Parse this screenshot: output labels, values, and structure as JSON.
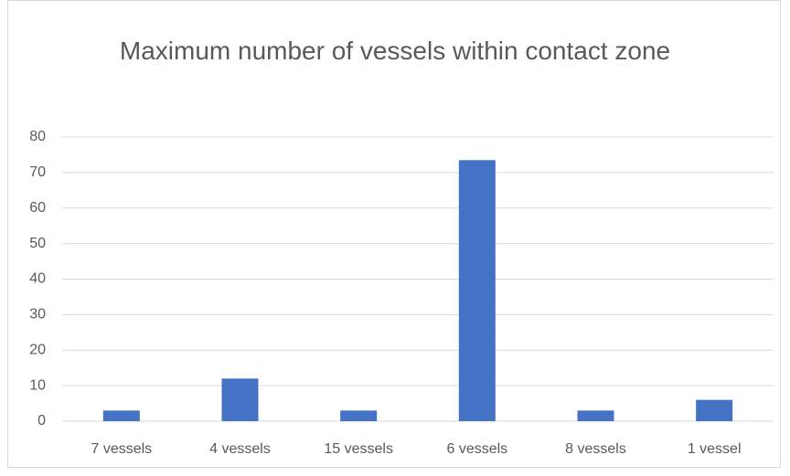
{
  "chart_data": {
    "type": "bar",
    "title": "Maximum number of vessels within contact zone",
    "categories": [
      "7 vessels",
      "4 vessels",
      "15 vessels",
      "6 vessels",
      "8 vessels",
      "1 vessel"
    ],
    "values": [
      3,
      12,
      3,
      73.5,
      3,
      6
    ],
    "color": "#4472c4",
    "ylim": [
      0,
      80
    ],
    "yticks": [
      0,
      10,
      20,
      30,
      40,
      50,
      60,
      70,
      80
    ],
    "grid": true
  }
}
